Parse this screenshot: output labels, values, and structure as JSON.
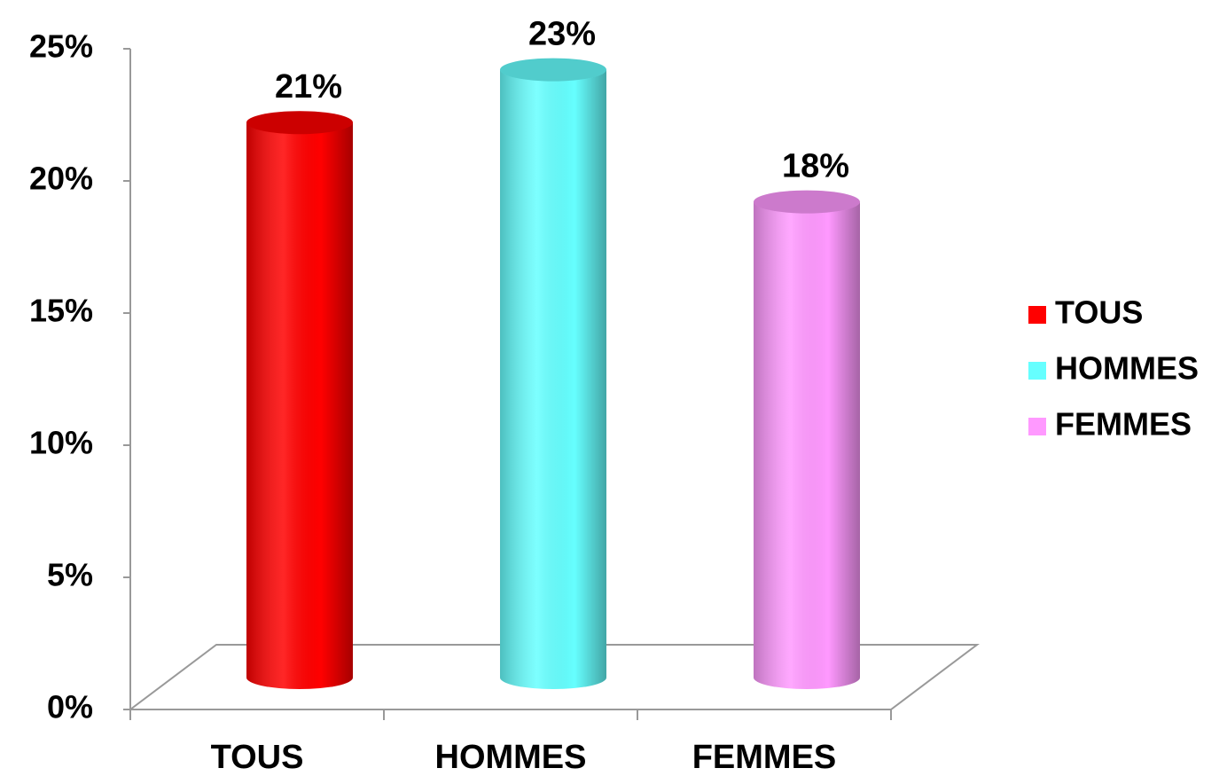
{
  "chart_data": {
    "type": "bar",
    "categories": [
      "TOUS",
      "HOMMES",
      "FEMMES"
    ],
    "values": [
      21,
      23,
      18
    ],
    "value_labels": [
      "21%",
      "23%",
      "18%"
    ],
    "colors": [
      "#ff0000",
      "#66ffff",
      "#ff99ff"
    ],
    "ylim": [
      0,
      25
    ],
    "yticks": [
      {
        "value": 0,
        "label": "0%"
      },
      {
        "value": 5,
        "label": "5%"
      },
      {
        "value": 10,
        "label": "10%"
      },
      {
        "value": 15,
        "label": "15%"
      },
      {
        "value": 20,
        "label": "20%"
      },
      {
        "value": 25,
        "label": "25%"
      }
    ],
    "grid": false,
    "legend": "right"
  }
}
